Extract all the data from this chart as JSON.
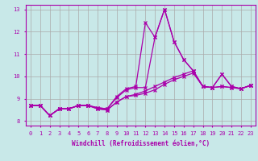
{
  "xlabel": "Windchill (Refroidissement éolien,°C)",
  "bg_color": "#c8e8e8",
  "line_color": "#aa00aa",
  "grid_color": "#aaaaaa",
  "xmin": -0.5,
  "xmax": 23.5,
  "ymin": 7.8,
  "ymax": 13.2,
  "yticks": [
    8,
    9,
    10,
    11,
    12,
    13
  ],
  "xticks": [
    0,
    1,
    2,
    3,
    4,
    5,
    6,
    7,
    8,
    9,
    10,
    11,
    12,
    13,
    14,
    15,
    16,
    17,
    18,
    19,
    20,
    21,
    22,
    23
  ],
  "series": [
    [
      8.7,
      8.7,
      8.25,
      8.55,
      8.55,
      8.7,
      8.7,
      8.6,
      8.55,
      9.1,
      9.45,
      9.55,
      12.4,
      11.75,
      13.0,
      11.55,
      10.75,
      10.25,
      9.55,
      9.5,
      10.1,
      9.55,
      9.45,
      9.6
    ],
    [
      8.7,
      8.7,
      8.25,
      8.55,
      8.55,
      8.7,
      8.7,
      8.6,
      8.55,
      9.05,
      9.4,
      9.5,
      9.5,
      11.75,
      13.0,
      11.55,
      10.75,
      10.25,
      9.55,
      9.5,
      10.1,
      9.55,
      9.45,
      9.6
    ],
    [
      8.7,
      8.7,
      8.25,
      8.55,
      8.55,
      8.7,
      8.7,
      8.55,
      8.5,
      8.85,
      9.1,
      9.2,
      9.35,
      9.55,
      9.75,
      9.95,
      10.1,
      10.25,
      9.55,
      9.5,
      9.55,
      9.5,
      9.45,
      9.6
    ],
    [
      8.7,
      8.7,
      8.25,
      8.55,
      8.55,
      8.7,
      8.7,
      8.55,
      8.5,
      8.85,
      9.1,
      9.15,
      9.25,
      9.4,
      9.65,
      9.85,
      10.0,
      10.15,
      9.55,
      9.5,
      9.55,
      9.5,
      9.45,
      9.6
    ]
  ]
}
